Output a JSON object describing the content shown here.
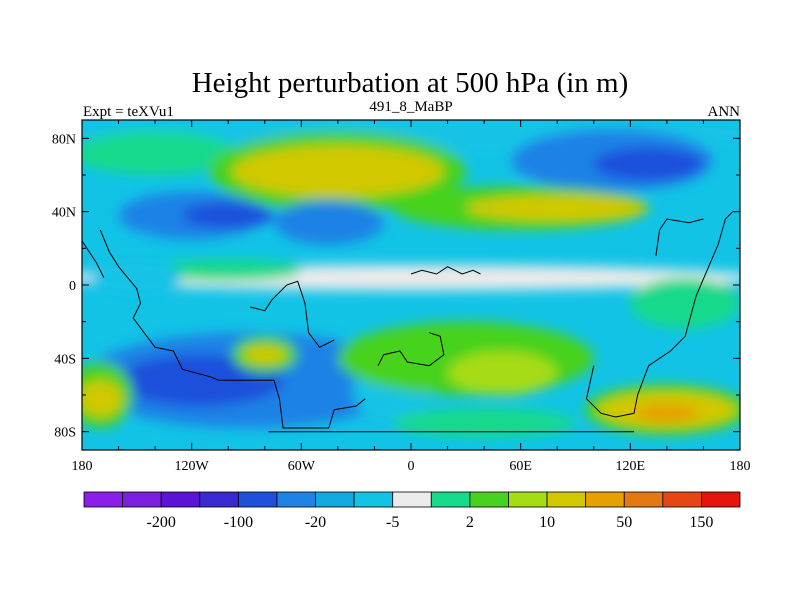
{
  "chart_data": {
    "type": "heatmap",
    "title": "Height perturbation at 500 hPa (in m)",
    "subtitle_left": "Expt = teXVu1",
    "subtitle_center": "491_8_MaBP",
    "subtitle_right": "ANN",
    "x_range": [
      -180,
      180
    ],
    "y_range": [
      -90,
      90
    ],
    "x_ticks": [
      {
        "value": -180,
        "label": "180"
      },
      {
        "value": -120,
        "label": "120W"
      },
      {
        "value": -60,
        "label": "60W"
      },
      {
        "value": 0,
        "label": "0"
      },
      {
        "value": 60,
        "label": "60E"
      },
      {
        "value": 120,
        "label": "120E"
      },
      {
        "value": 180,
        "label": "180"
      }
    ],
    "y_ticks": [
      {
        "value": 80,
        "label": "80N"
      },
      {
        "value": 40,
        "label": "40N"
      },
      {
        "value": 0,
        "label": "0"
      },
      {
        "value": -40,
        "label": "40S"
      },
      {
        "value": -80,
        "label": "80S"
      }
    ],
    "colorbar": {
      "colors": [
        "#8b1ee8",
        "#7a1ee0",
        "#5a14d8",
        "#3a28d2",
        "#1e50dc",
        "#1e82e6",
        "#12a8e0",
        "#12c3e6",
        "#ebebeb",
        "#17d98c",
        "#46d21e",
        "#a6dc14",
        "#d2c800",
        "#e6a000",
        "#e67814",
        "#e64614",
        "#e6140f"
      ],
      "labels": [
        {
          "after": 1,
          "text": "-200"
        },
        {
          "after": 3,
          "text": "-100"
        },
        {
          "after": 5,
          "text": "-20"
        },
        {
          "after": 7,
          "text": "-5"
        },
        {
          "after": 9,
          "text": "2"
        },
        {
          "after": 11,
          "text": "10"
        },
        {
          "after": 13,
          "text": "50"
        },
        {
          "after": 15,
          "text": "150"
        }
      ]
    },
    "regions": [
      {
        "name": "arctic-cyan-band",
        "lon": 0,
        "lat": 82,
        "rlon": 200,
        "rlat": 10,
        "level": 7
      },
      {
        "name": "north-pacific-green",
        "lon": -140,
        "lat": 72,
        "rlon": 45,
        "rlat": 12,
        "level": 9
      },
      {
        "name": "north-atlantic-high-green",
        "lon": -40,
        "lat": 62,
        "rlon": 70,
        "rlat": 22,
        "level": 10
      },
      {
        "name": "north-atlantic-high-yellow",
        "lon": -40,
        "lat": 62,
        "rlon": 58,
        "rlat": 14,
        "level": 12
      },
      {
        "name": "siberia-low-blue",
        "lon": 110,
        "lat": 68,
        "rlon": 55,
        "rlat": 17,
        "level": 5
      },
      {
        "name": "siberia-low-core",
        "lon": 130,
        "lat": 66,
        "rlon": 30,
        "rlat": 9,
        "level": 4
      },
      {
        "name": "eurasia-ridge-green",
        "lon": 60,
        "lat": 42,
        "rlon": 70,
        "rlat": 12,
        "level": 10
      },
      {
        "name": "eurasia-ridge-yellow",
        "lon": 80,
        "lat": 42,
        "rlon": 50,
        "rlat": 7,
        "level": 12
      },
      {
        "name": "north-america-low-blue",
        "lon": -120,
        "lat": 38,
        "rlon": 40,
        "rlat": 13,
        "level": 5
      },
      {
        "name": "north-america-low-core",
        "lon": -100,
        "lat": 38,
        "rlon": 25,
        "rlat": 7,
        "level": 4
      },
      {
        "name": "mid-atlantic-blue",
        "lon": -45,
        "lat": 34,
        "rlon": 30,
        "rlat": 12,
        "level": 5
      },
      {
        "name": "tropical-white",
        "lon": 0,
        "lat": 4,
        "rlon": 190,
        "rlat": 7,
        "level": 8
      },
      {
        "name": "tropical-green-west",
        "lon": -100,
        "lat": 8,
        "rlon": 40,
        "rlat": 6,
        "level": 9
      },
      {
        "name": "tropical-cyan-west",
        "lon": -150,
        "lat": 4,
        "rlon": 25,
        "rlat": 9,
        "level": 7
      },
      {
        "name": "south-pacific-blue",
        "lon": -90,
        "lat": -52,
        "rlon": 90,
        "rlat": 26,
        "level": 5
      },
      {
        "name": "south-pacific-core",
        "lon": -115,
        "lat": -52,
        "rlon": 45,
        "rlat": 14,
        "level": 4
      },
      {
        "name": "south-pacific-green",
        "lon": -80,
        "lat": -38,
        "rlon": 18,
        "rlat": 10,
        "level": 10
      },
      {
        "name": "south-pacific-yellow",
        "lon": -80,
        "lat": -38,
        "rlon": 12,
        "rlat": 5,
        "level": 12
      },
      {
        "name": "southern-ocean-west-green",
        "lon": -170,
        "lat": -60,
        "rlon": 18,
        "rlat": 18,
        "level": 10
      },
      {
        "name": "southern-ocean-west-yellow",
        "lon": -170,
        "lat": -62,
        "rlon": 12,
        "rlat": 10,
        "level": 12
      },
      {
        "name": "south-atlantic-cyan",
        "lon": -10,
        "lat": -58,
        "rlon": 22,
        "rlat": 16,
        "level": 7
      },
      {
        "name": "south-atlantic-green",
        "lon": 30,
        "lat": -40,
        "rlon": 70,
        "rlat": 20,
        "level": 10
      },
      {
        "name": "indian-ocean-yellow",
        "lon": 50,
        "lat": -48,
        "rlon": 30,
        "rlat": 12,
        "level": 11
      },
      {
        "name": "southern-indian-green",
        "lon": 40,
        "lat": -75,
        "rlon": 50,
        "rlat": 8,
        "level": 9
      },
      {
        "name": "australia-high-green",
        "lon": 140,
        "lat": -68,
        "rlon": 45,
        "rlat": 14,
        "level": 10
      },
      {
        "name": "australia-high-yellow",
        "lon": 140,
        "lat": -68,
        "rlon": 38,
        "rlat": 10,
        "level": 12
      },
      {
        "name": "australia-high-orange",
        "lon": 140,
        "lat": -70,
        "rlon": 18,
        "rlat": 5,
        "level": 13
      },
      {
        "name": "west-pacific-green",
        "lon": 150,
        "lat": -10,
        "rlon": 30,
        "rlat": 14,
        "level": 9
      }
    ],
    "coastlines": [
      [
        [
          -170,
          30
        ],
        [
          -165,
          18
        ],
        [
          -160,
          10
        ],
        [
          -155,
          4
        ],
        [
          -150,
          -2
        ],
        [
          -148,
          -10
        ],
        [
          -152,
          -18
        ],
        [
          -146,
          -26
        ],
        [
          -140,
          -34
        ],
        [
          -130,
          -36
        ],
        [
          -125,
          -46
        ],
        [
          -110,
          -50
        ],
        [
          -105,
          -52
        ],
        [
          -75,
          -52
        ],
        [
          -72,
          -62
        ],
        [
          -70,
          -78
        ],
        [
          -45,
          -78
        ],
        [
          -42,
          -68
        ],
        [
          -30,
          -66
        ],
        [
          -25,
          -62
        ]
      ],
      [
        [
          -88,
          -12
        ],
        [
          -80,
          -14
        ],
        [
          -76,
          -8
        ],
        [
          -68,
          0
        ],
        [
          -62,
          2
        ],
        [
          -58,
          -10
        ],
        [
          -56,
          -26
        ],
        [
          -50,
          -34
        ],
        [
          -42,
          -30
        ]
      ],
      [
        [
          -18,
          -44
        ],
        [
          -15,
          -38
        ],
        [
          -6,
          -36
        ],
        [
          -2,
          -42
        ],
        [
          10,
          -44
        ],
        [
          18,
          -38
        ],
        [
          16,
          -28
        ],
        [
          10,
          -26
        ]
      ],
      [
        [
          0,
          6
        ],
        [
          6,
          8
        ],
        [
          14,
          6
        ],
        [
          20,
          10
        ],
        [
          28,
          6
        ],
        [
          34,
          8
        ],
        [
          38,
          6
        ]
      ],
      [
        [
          -78,
          -80
        ],
        [
          0,
          -80
        ],
        [
          60,
          -80
        ],
        [
          100,
          -80
        ],
        [
          122,
          -80
        ]
      ],
      [
        [
          100,
          -44
        ],
        [
          96,
          -62
        ],
        [
          104,
          -70
        ],
        [
          112,
          -72
        ],
        [
          122,
          -70
        ],
        [
          124,
          -60
        ],
        [
          130,
          -44
        ],
        [
          142,
          -36
        ],
        [
          150,
          -28
        ],
        [
          156,
          -6
        ],
        [
          162,
          8
        ],
        [
          168,
          22
        ],
        [
          172,
          36
        ],
        [
          176,
          40
        ]
      ],
      [
        [
          134,
          16
        ],
        [
          136,
          30
        ],
        [
          140,
          36
        ],
        [
          152,
          34
        ],
        [
          160,
          36
        ]
      ],
      [
        [
          -180,
          24
        ],
        [
          -176,
          18
        ],
        [
          -172,
          12
        ],
        [
          -168,
          4
        ]
      ]
    ]
  }
}
